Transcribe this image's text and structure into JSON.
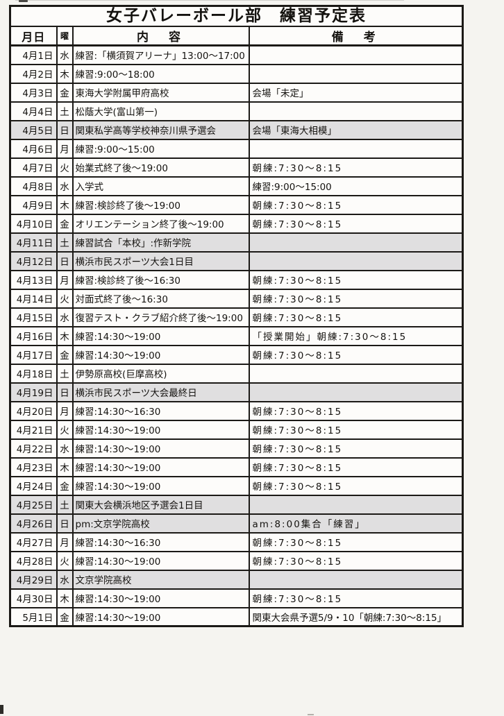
{
  "page": {
    "title": "女子バレーボール部　練習予定表",
    "columns": [
      "月日",
      "曜",
      "内　容",
      "備　考"
    ]
  },
  "colors": {
    "border": "#1b1916",
    "paper": "#f5f4f0",
    "cell": "#fdfcfa",
    "shaded_row": "#e0dfe0"
  },
  "schedule": {
    "rows": [
      {
        "date": "4月1日",
        "day": "水",
        "content": "練習:「横須賀アリーナ」13:00〜17:00",
        "note": "",
        "shaded": false
      },
      {
        "date": "4月2日",
        "day": "木",
        "content": "練習:9:00〜18:00",
        "note": "",
        "shaded": false
      },
      {
        "date": "4月3日",
        "day": "金",
        "content": "東海大学附属甲府高校",
        "note": "会場「未定」",
        "shaded": false
      },
      {
        "date": "4月4日",
        "day": "土",
        "content": "松蔭大学(富山第一)",
        "note": "",
        "shaded": false
      },
      {
        "date": "4月5日",
        "day": "日",
        "content": "関東私学高等学校神奈川県予選会",
        "note": "会場「東海大相模」",
        "shaded": true
      },
      {
        "date": "4月6日",
        "day": "月",
        "content": "練習:9:00〜15:00",
        "note": "",
        "shaded": false
      },
      {
        "date": "4月7日",
        "day": "火",
        "content": "始業式終了後〜19:00",
        "note": "朝練:7:30〜8:15",
        "shaded": false
      },
      {
        "date": "4月8日",
        "day": "水",
        "content": "入学式",
        "note": "練習:9:00〜15:00",
        "shaded": false
      },
      {
        "date": "4月9日",
        "day": "木",
        "content": "練習:検診終了後〜19:00",
        "note": "朝練:7:30〜8:15",
        "shaded": false
      },
      {
        "date": "4月10日",
        "day": "金",
        "content": "オリエンテーション終了後〜19:00",
        "note": "朝練:7:30〜8:15",
        "shaded": false
      },
      {
        "date": "4月11日",
        "day": "土",
        "content": "練習試合「本校」:作新学院",
        "note": "",
        "shaded": true
      },
      {
        "date": "4月12日",
        "day": "日",
        "content": "横浜市民スポーツ大会1日目",
        "note": "",
        "shaded": true
      },
      {
        "date": "4月13日",
        "day": "月",
        "content": "練習:検診終了後〜16:30",
        "note": "朝練:7:30〜8:15",
        "shaded": false
      },
      {
        "date": "4月14日",
        "day": "火",
        "content": "対面式終了後〜16:30",
        "note": "朝練:7:30〜8:15",
        "shaded": false
      },
      {
        "date": "4月15日",
        "day": "水",
        "content": "復習テスト・クラブ紹介終了後〜19:00",
        "note": "朝練:7:30〜8:15",
        "shaded": false
      },
      {
        "date": "4月16日",
        "day": "木",
        "content": "練習:14:30〜19:00",
        "note": "「授業開始」朝練:7:30〜8:15",
        "shaded": false
      },
      {
        "date": "4月17日",
        "day": "金",
        "content": "練習:14:30〜19:00",
        "note": "朝練:7:30〜8:15",
        "shaded": false
      },
      {
        "date": "4月18日",
        "day": "土",
        "content": "伊勢原高校(巨摩高校)",
        "note": "",
        "shaded": false
      },
      {
        "date": "4月19日",
        "day": "日",
        "content": "横浜市民スポーツ大会最終日",
        "note": "",
        "shaded": true
      },
      {
        "date": "4月20日",
        "day": "月",
        "content": "練習:14:30〜16:30",
        "note": "朝練:7:30〜8:15",
        "shaded": false
      },
      {
        "date": "4月21日",
        "day": "火",
        "content": "練習:14:30〜19:00",
        "note": "朝練:7:30〜8:15",
        "shaded": false
      },
      {
        "date": "4月22日",
        "day": "水",
        "content": "練習:14:30〜19:00",
        "note": "朝練:7:30〜8:15",
        "shaded": false
      },
      {
        "date": "4月23日",
        "day": "木",
        "content": "練習:14:30〜19:00",
        "note": "朝練:7:30〜8:15",
        "shaded": false
      },
      {
        "date": "4月24日",
        "day": "金",
        "content": "練習:14:30〜19:00",
        "note": "朝練:7:30〜8:15",
        "shaded": false
      },
      {
        "date": "4月25日",
        "day": "土",
        "content": "関東大会横浜地区予選会1日目",
        "note": "",
        "shaded": true
      },
      {
        "date": "4月26日",
        "day": "日",
        "content": "pm:文京学院高校",
        "note": "am:8:00集合「練習」",
        "shaded": true
      },
      {
        "date": "4月27日",
        "day": "月",
        "content": "練習:14:30〜16:30",
        "note": "朝練:7:30〜8:15",
        "shaded": false
      },
      {
        "date": "4月28日",
        "day": "火",
        "content": "練習:14:30〜19:00",
        "note": "朝練:7:30〜8:15",
        "shaded": false
      },
      {
        "date": "4月29日",
        "day": "水",
        "content": "文京学院高校",
        "note": "",
        "shaded": true
      },
      {
        "date": "4月30日",
        "day": "木",
        "content": "練習:14:30〜19:00",
        "note": "朝練:7:30〜8:15",
        "shaded": false
      },
      {
        "date": "5月1日",
        "day": "金",
        "content": "練習:14:30〜19:00",
        "note": "関東大会県予選5/9・10「朝練:7:30〜8:15」",
        "shaded": false
      }
    ]
  }
}
